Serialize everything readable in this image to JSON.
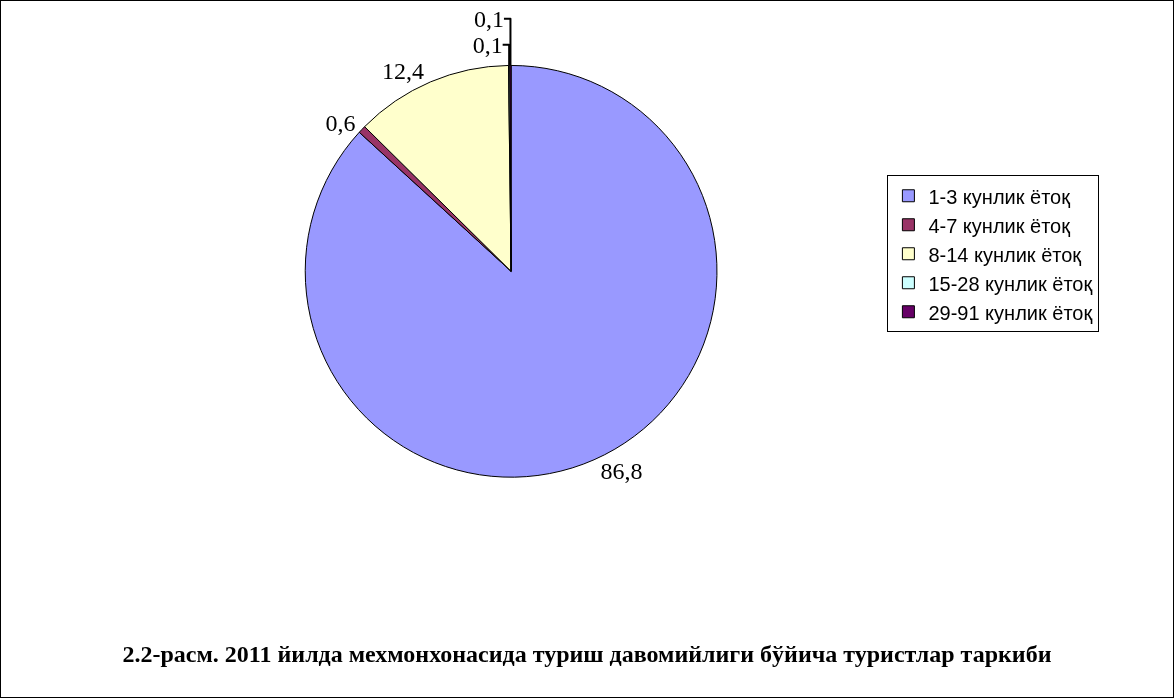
{
  "chart_data": {
    "type": "pie",
    "title": "2.2-расм. 2011 йилда мехмонхонасида туриш давомийлиги бўйича туристлар таркиби",
    "categories": [
      "1-3 кунлик ётоқ",
      "4-7 кунлик ётоқ",
      "8-14 кунлик ётоқ",
      "15-28 кунлик ётоқ",
      "29-91 кунлик ётоқ"
    ],
    "values": [
      86.8,
      0.6,
      12.4,
      0.1,
      0.1
    ],
    "value_labels": [
      "86,8",
      "0,6",
      "12,4",
      "0,1",
      "0,1"
    ],
    "colors": [
      "#9999ff",
      "#993366",
      "#ffffcc",
      "#ccffff",
      "#660066"
    ],
    "legend": "right"
  }
}
